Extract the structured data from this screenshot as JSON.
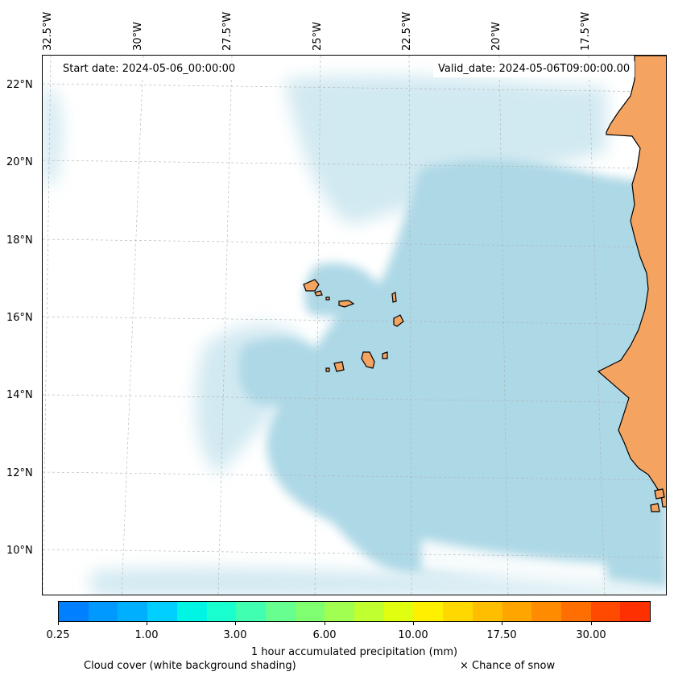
{
  "map": {
    "start_date": "Start date: 2024-05-06_00:00:00",
    "valid_date": "Valid_date: 2024-05-06T09:00:00.00",
    "longitude_labels": [
      "32.5°W",
      "30°W",
      "27.5°W",
      "25°W",
      "22.5°W",
      "20°W",
      "17.5°W"
    ],
    "latitude_labels": [
      "22°N",
      "20°N",
      "18°N",
      "16°N",
      "14°N",
      "12°N",
      "10°N"
    ],
    "extent": {
      "lon_min": -32.5,
      "lon_max": -15.5,
      "lat_min": 9,
      "lat_max": 22.8
    },
    "colors": {
      "land": "#f4a460",
      "cloud": "#add8e6",
      "coastline": "#000000",
      "gridline": "#b0b0b0"
    }
  },
  "legend": {
    "colorbar_colors": [
      "#0080ff",
      "#0099ff",
      "#00b0ff",
      "#00cfff",
      "#00f5e5",
      "#1affd0",
      "#40ffb0",
      "#66ff90",
      "#80ff70",
      "#a0ff50",
      "#c0ff30",
      "#e0ff10",
      "#fff000",
      "#ffd800",
      "#ffbf00",
      "#ffa500",
      "#ff8c00",
      "#ff6e00",
      "#ff4a00",
      "#ff3000"
    ],
    "tick_labels": [
      "0.25",
      "1.00",
      "3.00",
      "6.00",
      "10.00",
      "17.50",
      "30.00"
    ],
    "colorbar_label": "1 hour accumulated precipitation (mm)",
    "cloud_label": "Cloud cover (white background shading)",
    "snow_label": "× Chance of snow"
  }
}
